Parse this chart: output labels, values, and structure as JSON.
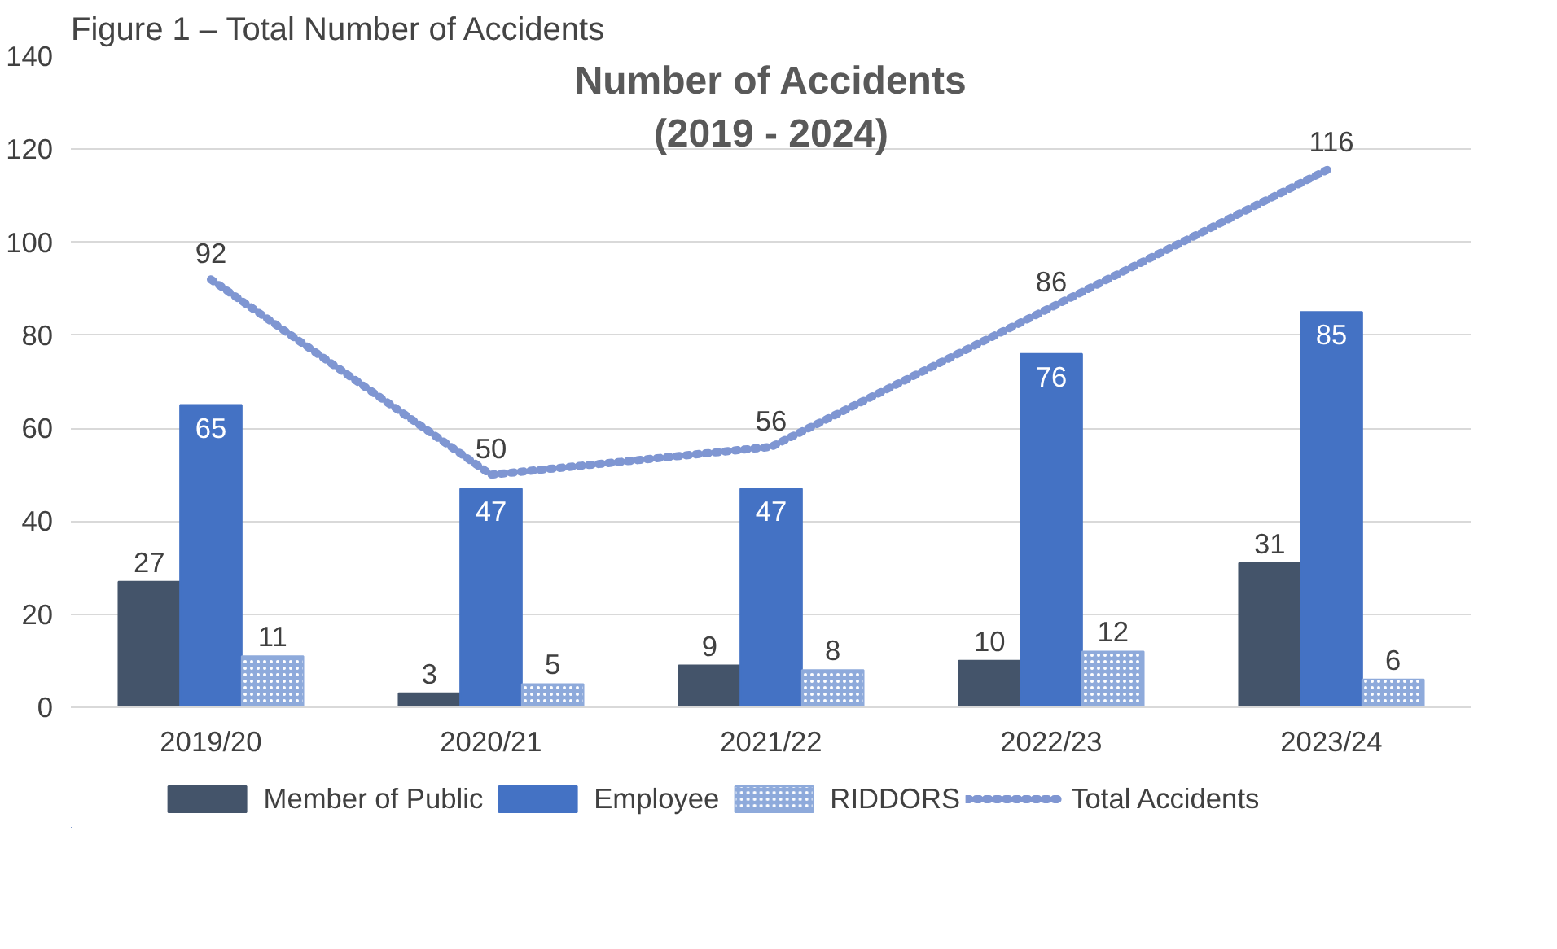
{
  "chart_data": {
    "type": "bar",
    "title": "Number of Accidents\n(2019 - 2024)",
    "annotations": [
      "Figure 1 – Total Number of Accidents"
    ],
    "categories": [
      "2019/20",
      "2020/21",
      "2021/22",
      "2022/23",
      "2023/24"
    ],
    "series": [
      {
        "name": "Member of Public",
        "color": "#44546a",
        "values": [
          27,
          3,
          9,
          10,
          31
        ]
      },
      {
        "name": "Employee",
        "color": "#4472c4",
        "values": [
          65,
          47,
          47,
          76,
          85
        ]
      },
      {
        "name": "RIDDORS",
        "color": "#8eaadb",
        "values": [
          11,
          5,
          8,
          12,
          6
        ]
      },
      {
        "name": "Total Accidents",
        "type": "line",
        "color": "#7f96d2",
        "line_style": "dotted",
        "marker": "none",
        "values": [
          92,
          50,
          56,
          86,
          116
        ]
      }
    ],
    "ylim": [
      0,
      140
    ],
    "yticks": [
      0,
      20,
      40,
      60,
      80,
      100,
      120,
      140
    ],
    "grid": "y",
    "legend": "bottom",
    "data_labels": true
  }
}
